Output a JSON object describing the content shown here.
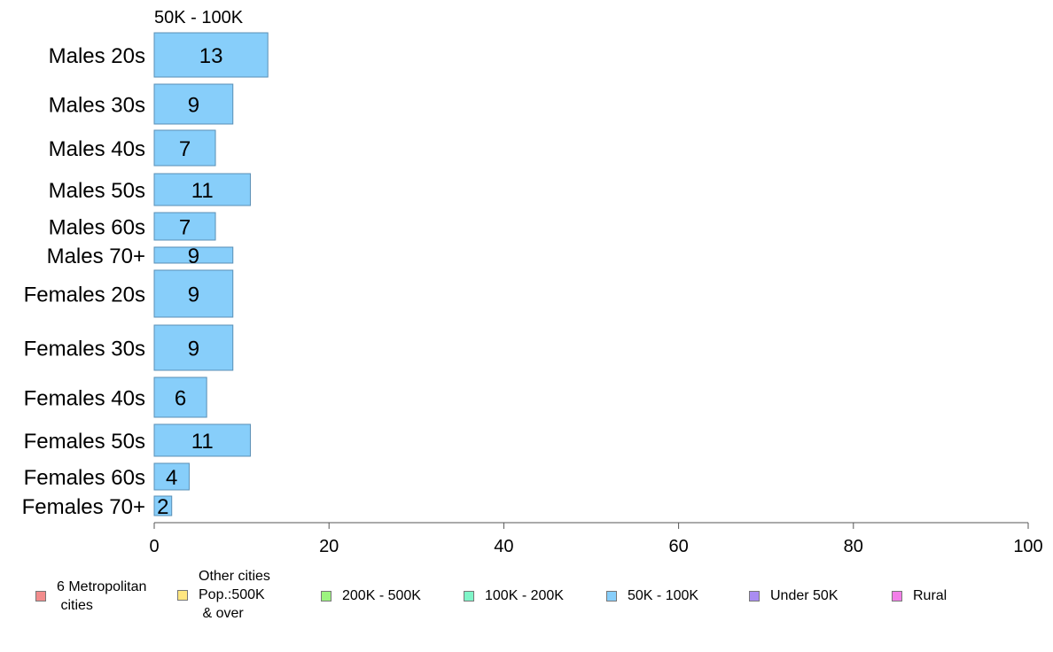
{
  "chart_data": {
    "type": "bar",
    "orientation": "horizontal",
    "title": "50K - 100K",
    "categories": [
      "Males 20s",
      "Males 30s",
      "Males 40s",
      "Males 50s",
      "Males 60s",
      "Males 70+",
      "Females 20s",
      "Females 30s",
      "Females 40s",
      "Females 50s",
      "Females 60s",
      "Females 70+"
    ],
    "values": [
      13,
      9,
      7,
      11,
      7,
      9,
      9,
      9,
      6,
      11,
      4,
      2
    ],
    "data_labels": [
      "13",
      "9",
      "7",
      "11",
      "7",
      "9",
      "9",
      "9",
      "6",
      "11",
      "4",
      "2"
    ],
    "xlim": [
      0,
      100
    ],
    "xticks": [
      "0",
      "20",
      "40",
      "60",
      "80",
      "100"
    ],
    "xlabel": "",
    "ylabel": "",
    "grid": false,
    "bar_color": "#87CEFA",
    "bar_edge_color": "#5A8FB5",
    "legend": {
      "placement": "bottom",
      "items": [
        {
          "label": "6 Metropolitan\n cities",
          "color": "#F28C8C"
        },
        {
          "label": "Other cities\nPop.:500K\n & over",
          "color": "#FFE680"
        },
        {
          "label": "200K - 500K",
          "color": "#9CF47F"
        },
        {
          "label": "100K - 200K",
          "color": "#7FF5C8"
        },
        {
          "label": "50K - 100K",
          "color": "#87CEFA"
        },
        {
          "label": "Under 50K",
          "color": "#A98CF2"
        },
        {
          "label": "Rural",
          "color": "#F27FE8"
        }
      ]
    }
  }
}
